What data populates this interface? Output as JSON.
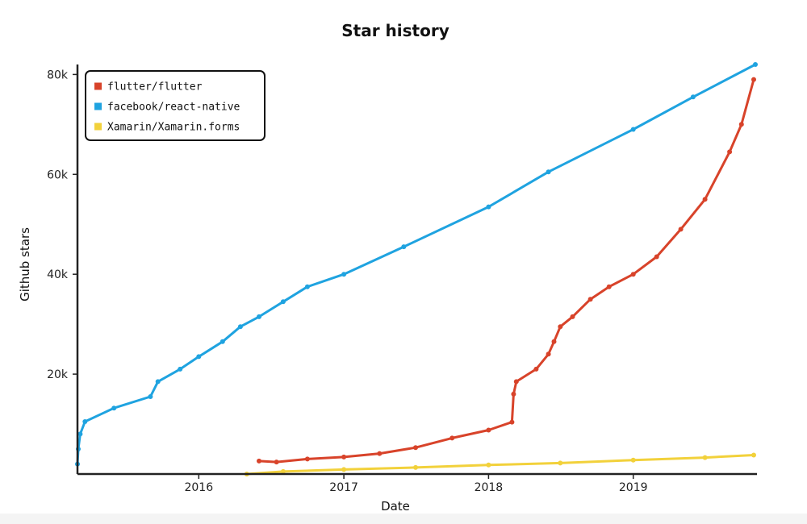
{
  "chart_data": {
    "type": "line",
    "title": "Star history",
    "xlabel": "Date",
    "ylabel": "Github stars",
    "xlim": [
      "2015-03-01",
      "2019-11-05"
    ],
    "ylim": [
      0,
      82000
    ],
    "x_ticks": [
      {
        "date": "2016-01-01",
        "label": "2016"
      },
      {
        "date": "2017-01-01",
        "label": "2017"
      },
      {
        "date": "2018-01-01",
        "label": "2018"
      },
      {
        "date": "2019-01-01",
        "label": "2019"
      }
    ],
    "y_ticks": [
      {
        "value": 20000,
        "label": "20k"
      },
      {
        "value": 40000,
        "label": "40k"
      },
      {
        "value": 60000,
        "label": "60k"
      },
      {
        "value": 80000,
        "label": "80k"
      }
    ],
    "legend_position": "top-left",
    "grid": false,
    "series": [
      {
        "name": "flutter/flutter",
        "color": "#d8432a",
        "points": [
          [
            "2016-06-01",
            2600
          ],
          [
            "2016-07-15",
            2400
          ],
          [
            "2016-10-01",
            3000
          ],
          [
            "2017-01-01",
            3400
          ],
          [
            "2017-04-01",
            4100
          ],
          [
            "2017-07-01",
            5300
          ],
          [
            "2017-10-01",
            7200
          ],
          [
            "2018-01-01",
            8800
          ],
          [
            "2018-03-01",
            10400
          ],
          [
            "2018-03-05",
            16000
          ],
          [
            "2018-03-12",
            18500
          ],
          [
            "2018-05-01",
            21000
          ],
          [
            "2018-06-01",
            24000
          ],
          [
            "2018-06-15",
            26500
          ],
          [
            "2018-07-01",
            29500
          ],
          [
            "2018-08-01",
            31500
          ],
          [
            "2018-09-15",
            35000
          ],
          [
            "2018-11-01",
            37500
          ],
          [
            "2019-01-01",
            40000
          ],
          [
            "2019-03-01",
            43500
          ],
          [
            "2019-05-01",
            49000
          ],
          [
            "2019-07-01",
            55000
          ],
          [
            "2019-09-01",
            64500
          ],
          [
            "2019-10-01",
            70000
          ],
          [
            "2019-11-01",
            79000
          ]
        ]
      },
      {
        "name": "facebook/react-native",
        "color": "#1fa3e0",
        "points": [
          [
            "2015-03-01",
            2000
          ],
          [
            "2015-03-03",
            5000
          ],
          [
            "2015-03-08",
            8000
          ],
          [
            "2015-03-20",
            10500
          ],
          [
            "2015-06-01",
            13200
          ],
          [
            "2015-09-01",
            15500
          ],
          [
            "2015-09-20",
            18500
          ],
          [
            "2015-11-15",
            21000
          ],
          [
            "2016-01-01",
            23500
          ],
          [
            "2016-03-01",
            26500
          ],
          [
            "2016-04-15",
            29500
          ],
          [
            "2016-06-01",
            31500
          ],
          [
            "2016-08-01",
            34500
          ],
          [
            "2016-10-01",
            37500
          ],
          [
            "2017-01-01",
            40000
          ],
          [
            "2017-06-01",
            45500
          ],
          [
            "2018-01-01",
            53500
          ],
          [
            "2018-06-01",
            60500
          ],
          [
            "2019-01-01",
            69000
          ],
          [
            "2019-06-01",
            75500
          ],
          [
            "2019-11-05",
            82000
          ]
        ]
      },
      {
        "name": "Xamarin/Xamarin.forms",
        "color": "#f2d13b",
        "points": [
          [
            "2016-05-01",
            0
          ],
          [
            "2016-08-01",
            500
          ],
          [
            "2017-01-01",
            900
          ],
          [
            "2017-07-01",
            1300
          ],
          [
            "2018-01-01",
            1800
          ],
          [
            "2018-07-01",
            2200
          ],
          [
            "2019-01-01",
            2800
          ],
          [
            "2019-07-01",
            3300
          ],
          [
            "2019-11-01",
            3800
          ]
        ]
      }
    ]
  }
}
